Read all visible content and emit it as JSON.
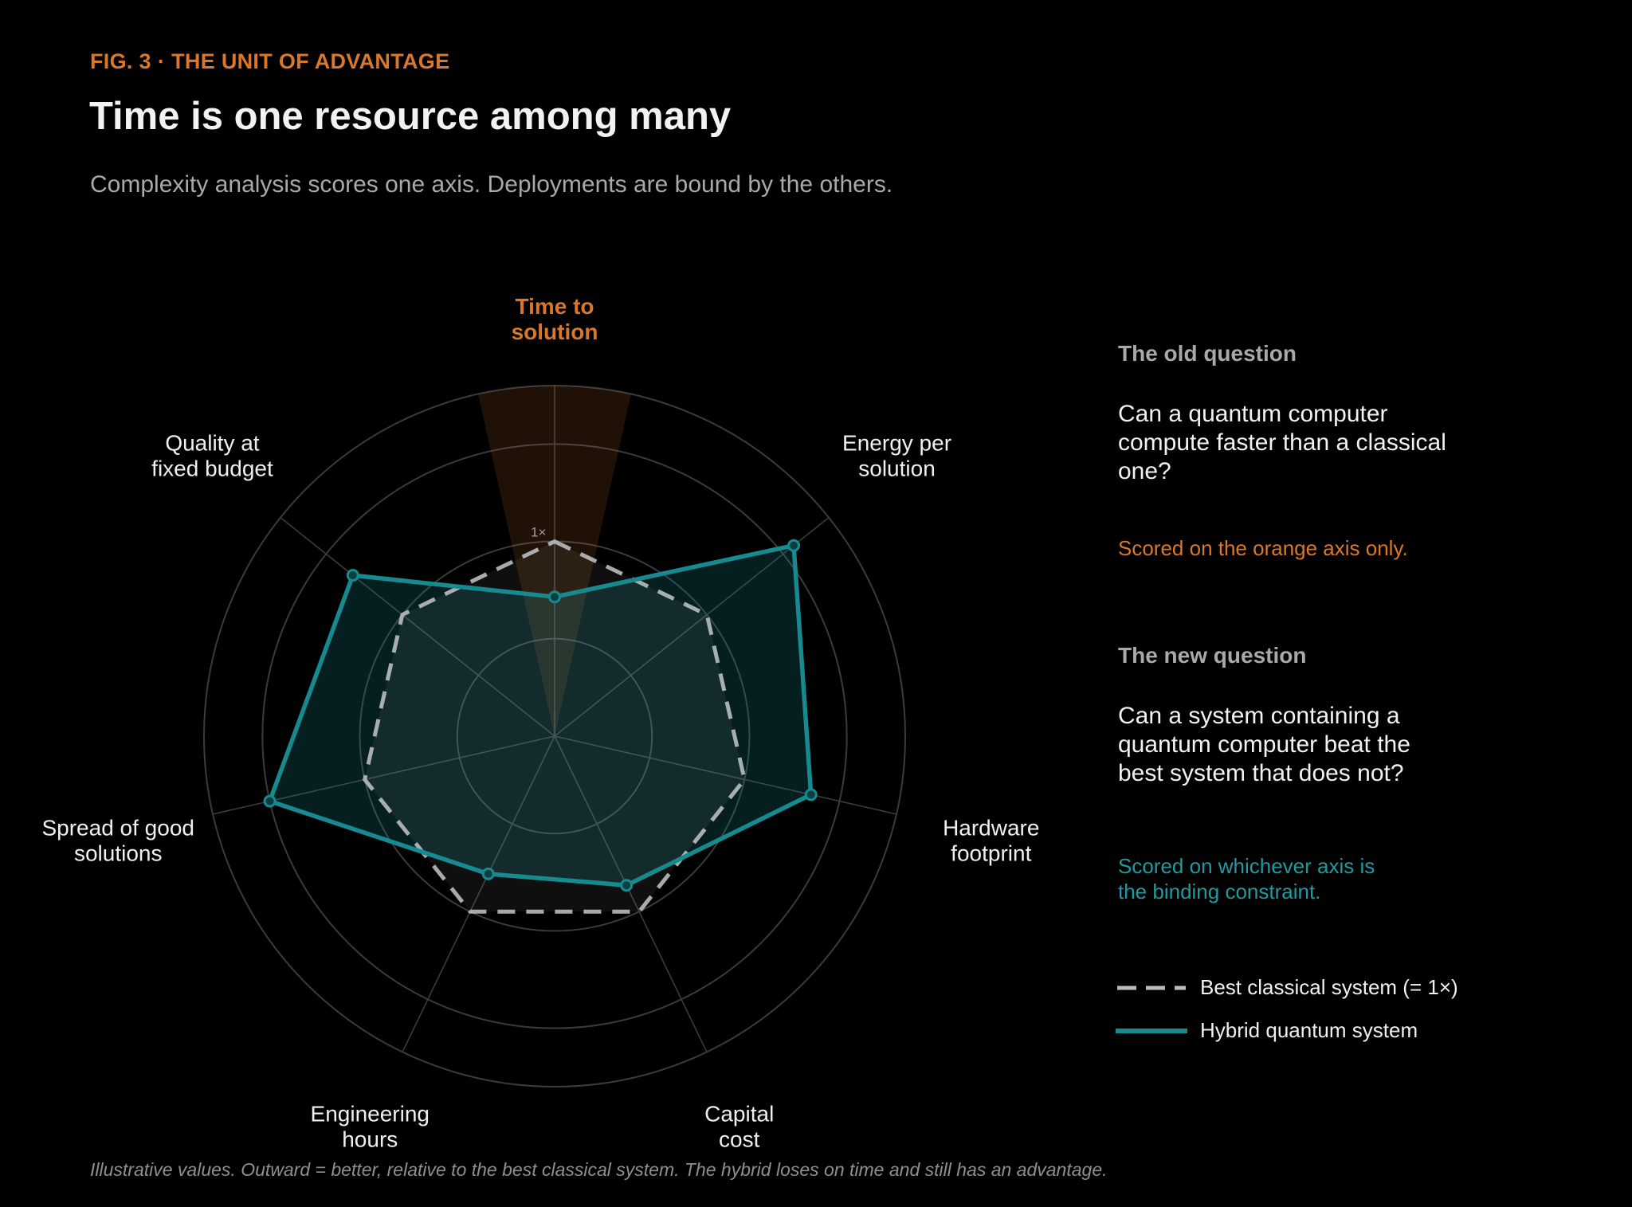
{
  "header": {
    "fig_label": "FIG. 3",
    "separator": "·",
    "eyebrow": "THE UNIT OF ADVANTAGE",
    "title": "Time is one resource among many",
    "subtitle": "Complexity analysis scores one axis. Deployments are bound by the others."
  },
  "chart_data": {
    "type": "radar",
    "axes": [
      [
        "Time to",
        "solution"
      ],
      [
        "Energy per",
        "solution"
      ],
      [
        "Hardware",
        "footprint"
      ],
      [
        "Capital",
        "cost"
      ],
      [
        "Engineering",
        "hours"
      ],
      [
        "Spread of good",
        "solutions"
      ],
      [
        "Quality at",
        "fixed budget"
      ]
    ],
    "highlighted_axis": 0,
    "reference_label": "1×",
    "rmax": 3.6,
    "rings": [
      1,
      2,
      3,
      3.6
    ],
    "series": [
      {
        "name": "Best classical system (= 1×)",
        "values": [
          2,
          2,
          2,
          2,
          2,
          2,
          2
        ],
        "style": "dashed",
        "color": "#b9bcc0"
      },
      {
        "name": "Hybrid quantum system",
        "values": [
          1.43,
          3.14,
          2.7,
          1.7,
          1.57,
          3.0,
          2.65
        ],
        "style": "solid",
        "color": "#168a8e"
      }
    ],
    "grid": true
  },
  "side": {
    "old_heading": "The old question",
    "old_question": "Can a quantum computer compute faster than a classical one?",
    "old_note": "Scored on the orange axis only.",
    "new_heading": "The new question",
    "new_question": "Can a system containing a quantum computer beat the best system that does not?",
    "new_note": "Scored on whichever axis is the binding constraint."
  },
  "legend": {
    "classical": "Best classical system (= 1×)",
    "hybrid": "Hybrid quantum system"
  },
  "footnote": "Illustrative values. Outward = better, relative to the best classical system. The hybrid loses on time and still has an advantage.",
  "colors": {
    "accent": "#d9782a",
    "teal": "#168a8e",
    "teal_text": "#1f9aa0",
    "classical": "#b9bcc0",
    "grid": "#3a3b3e",
    "background": "#000000"
  }
}
